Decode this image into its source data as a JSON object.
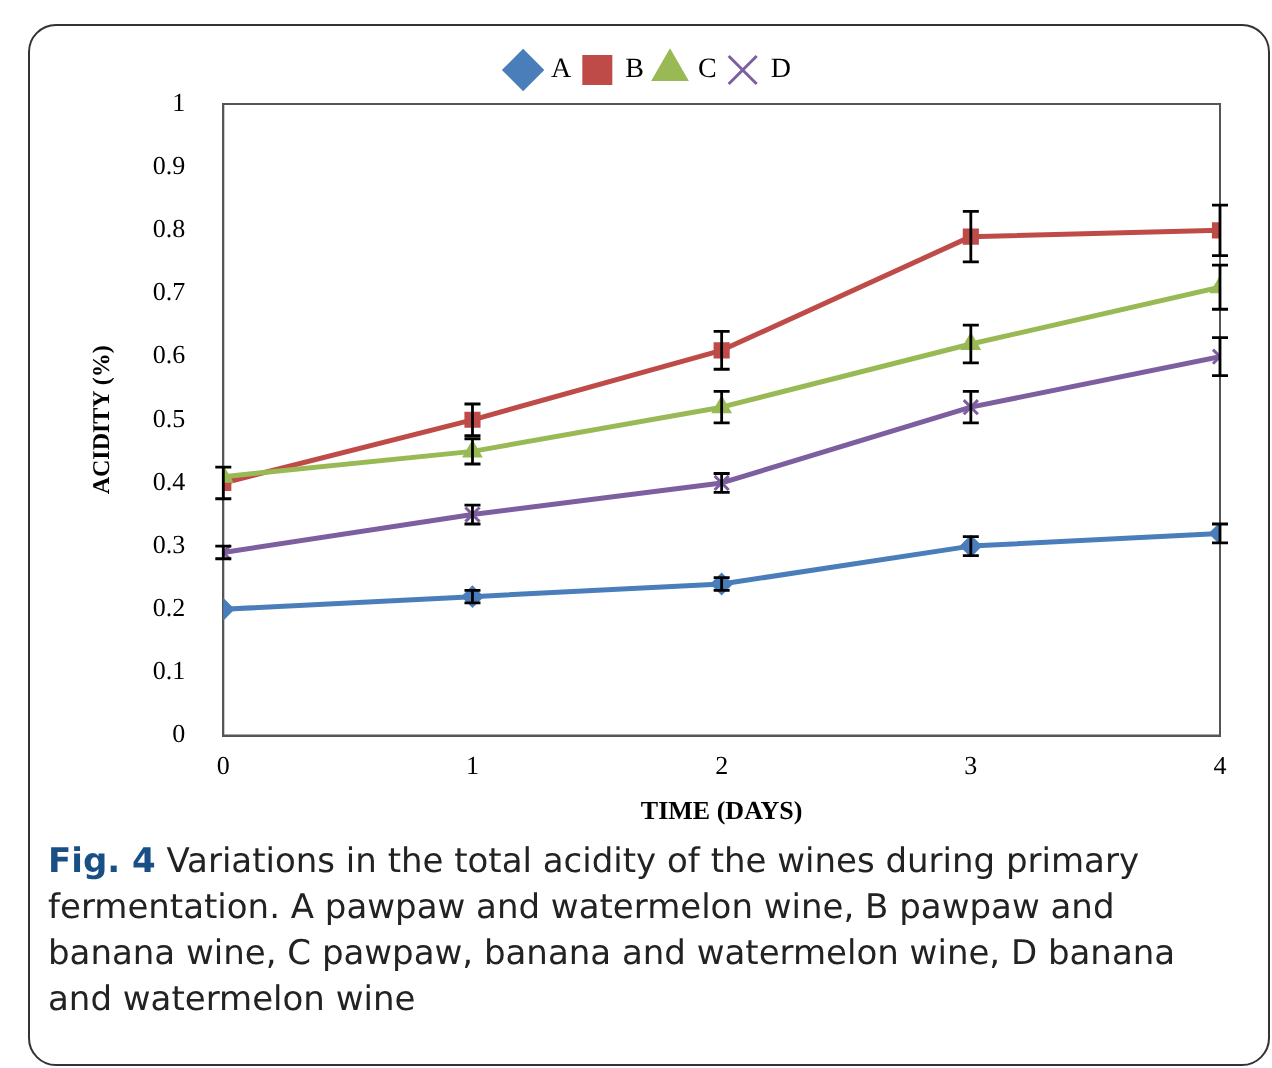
{
  "chart_data": {
    "type": "line",
    "xlabel": "TIME (DAYS)",
    "ylabel": "ACIDITY (%)",
    "x": [
      0,
      1,
      2,
      3,
      4
    ],
    "xlim": [
      0,
      4
    ],
    "xticks": [
      0,
      1,
      2,
      3,
      4
    ],
    "ylim": [
      0,
      1
    ],
    "yticks": [
      0,
      0.1,
      0.2,
      0.3,
      0.4,
      0.5,
      0.6,
      0.7,
      0.8,
      0.9,
      1
    ],
    "grid": false,
    "legend": "top",
    "line_style": "solid",
    "series": [
      {
        "name": "A",
        "color": "#4a7ebb",
        "marker": "diamond",
        "values": [
          0.2,
          0.22,
          0.24,
          0.3,
          0.32
        ],
        "errors": [
          null,
          0.01,
          0.01,
          0.015,
          0.015
        ]
      },
      {
        "name": "B",
        "color": "#be4b48",
        "marker": "square",
        "values": [
          0.4,
          0.5,
          0.61,
          0.79,
          0.8
        ],
        "errors": [
          0.025,
          0.025,
          0.03,
          0.04,
          0.04
        ]
      },
      {
        "name": "C",
        "color": "#98b954",
        "marker": "triangle",
        "values": [
          0.41,
          0.45,
          0.52,
          0.62,
          0.71
        ],
        "errors": [
          null,
          0.02,
          0.025,
          0.03,
          0.035
        ]
      },
      {
        "name": "D",
        "color": "#7d5fa0",
        "marker": "cross",
        "values": [
          0.29,
          0.35,
          0.4,
          0.52,
          0.6
        ],
        "errors": [
          0.01,
          0.015,
          0.015,
          0.025,
          0.03
        ]
      }
    ],
    "annotations": [
      "Fig. 4",
      "Variations in the total acidity of the wines during primary fermentation. A pawpaw and watermelon wine, B pawpaw and banana wine, C pawpaw, banana and watermelon wine, D banana and watermelon wine"
    ]
  }
}
